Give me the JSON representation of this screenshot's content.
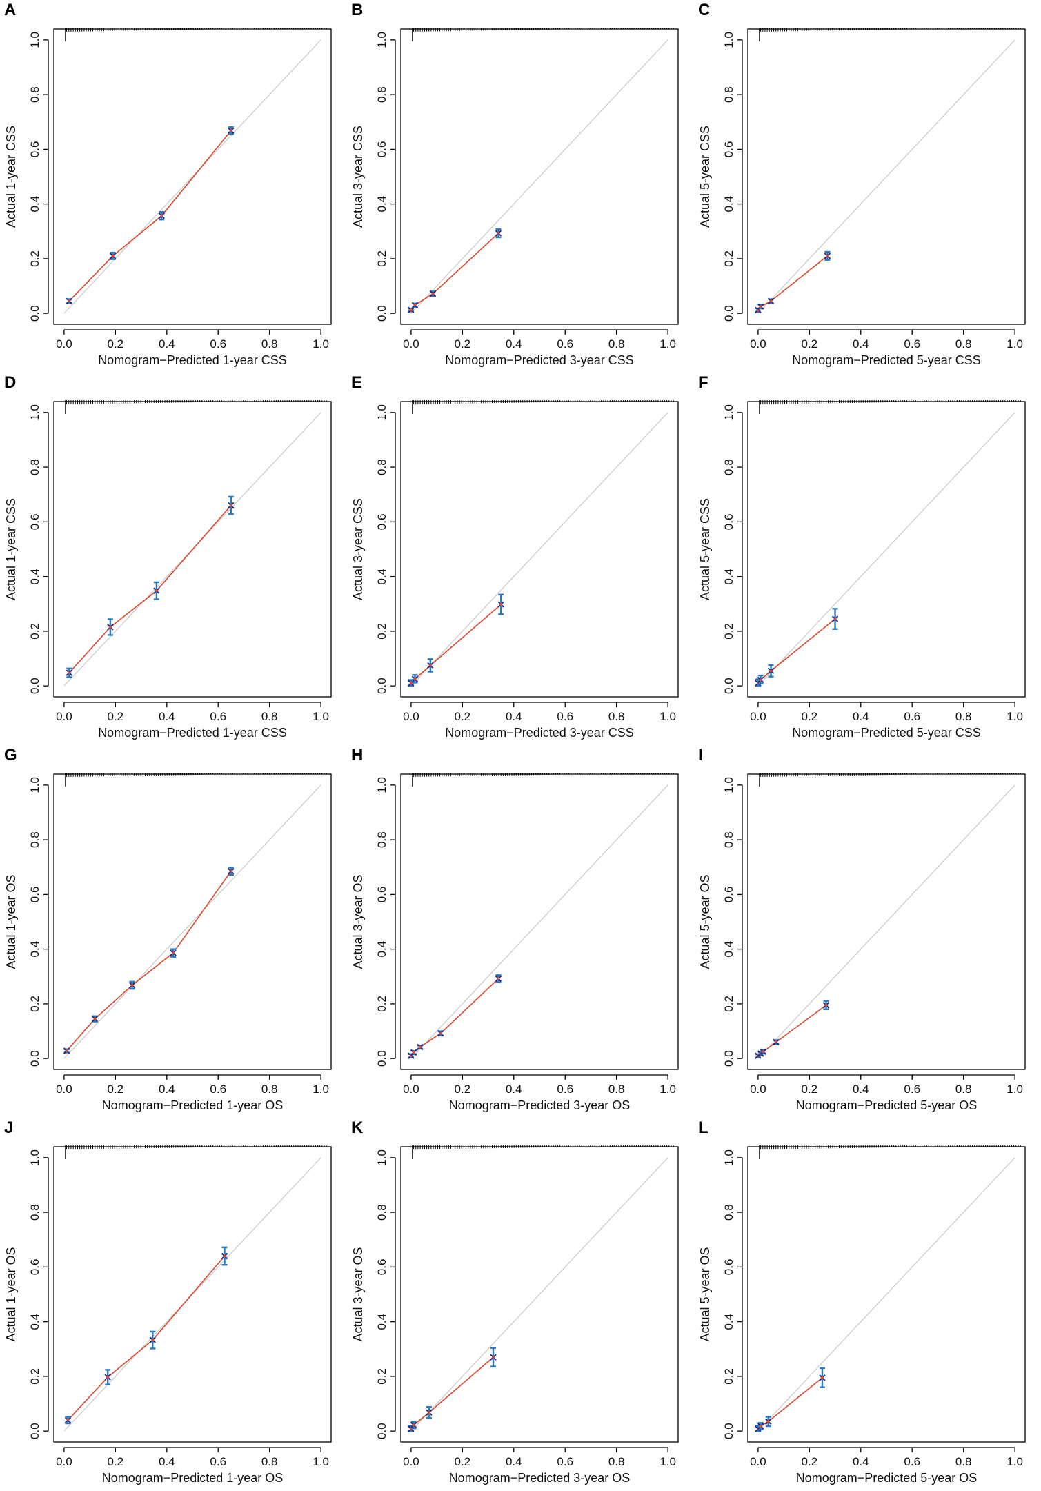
{
  "colors": {
    "calibration_line": "#d9482b",
    "error_bar": "#2a7ac0",
    "point_marker": "#1b2f8c",
    "ideal_line": "#c8c8c8"
  },
  "chart_data": [
    {
      "panel": "A",
      "type": "line",
      "xlabel": "Nomogram−Predicted 1-year CSS",
      "ylabel": "Actual 1-year CSS",
      "xlim": [
        0,
        1
      ],
      "ylim": [
        0,
        1
      ],
      "grid": false,
      "ticks": [
        "0.0",
        "0.2",
        "0.4",
        "0.6",
        "0.8",
        "1.0"
      ],
      "points": [
        {
          "x": 0.02,
          "y": 0.045,
          "lo": 0.038,
          "hi": 0.052
        },
        {
          "x": 0.19,
          "y": 0.21,
          "lo": 0.198,
          "hi": 0.222
        },
        {
          "x": 0.38,
          "y": 0.357,
          "lo": 0.343,
          "hi": 0.371
        },
        {
          "x": 0.65,
          "y": 0.668,
          "lo": 0.655,
          "hi": 0.681
        }
      ]
    },
    {
      "panel": "B",
      "type": "line",
      "xlabel": "Nomogram−Predicted 3-year CSS",
      "ylabel": "Actual 3-year CSS",
      "xlim": [
        0,
        1
      ],
      "ylim": [
        0,
        1
      ],
      "grid": false,
      "ticks": [
        "0.0",
        "0.2",
        "0.4",
        "0.6",
        "0.8",
        "1.0"
      ],
      "points": [
        {
          "x": 0.0,
          "y": 0.012,
          "lo": 0.007,
          "hi": 0.017
        },
        {
          "x": 0.015,
          "y": 0.03,
          "lo": 0.024,
          "hi": 0.036
        },
        {
          "x": 0.085,
          "y": 0.072,
          "lo": 0.064,
          "hi": 0.08
        },
        {
          "x": 0.34,
          "y": 0.293,
          "lo": 0.278,
          "hi": 0.308
        }
      ]
    },
    {
      "panel": "C",
      "type": "line",
      "xlabel": "Nomogram−Predicted 5-year CSS",
      "ylabel": "Actual 5-year CSS",
      "xlim": [
        0,
        1
      ],
      "ylim": [
        0,
        1
      ],
      "grid": false,
      "ticks": [
        "0.0",
        "0.2",
        "0.4",
        "0.6",
        "0.8",
        "1.0"
      ],
      "points": [
        {
          "x": 0.0,
          "y": 0.012,
          "lo": 0.006,
          "hi": 0.018
        },
        {
          "x": 0.01,
          "y": 0.025,
          "lo": 0.018,
          "hi": 0.032
        },
        {
          "x": 0.05,
          "y": 0.045,
          "lo": 0.038,
          "hi": 0.052
        },
        {
          "x": 0.27,
          "y": 0.21,
          "lo": 0.195,
          "hi": 0.225
        }
      ]
    },
    {
      "panel": "D",
      "type": "line",
      "xlabel": "Nomogram−Predicted 1-year CSS",
      "ylabel": "Actual 1-year CSS",
      "xlim": [
        0,
        1
      ],
      "ylim": [
        0,
        1
      ],
      "grid": false,
      "ticks": [
        "0.0",
        "0.2",
        "0.4",
        "0.6",
        "0.8",
        "1.0"
      ],
      "points": [
        {
          "x": 0.02,
          "y": 0.048,
          "lo": 0.032,
          "hi": 0.064
        },
        {
          "x": 0.18,
          "y": 0.215,
          "lo": 0.186,
          "hi": 0.244
        },
        {
          "x": 0.36,
          "y": 0.348,
          "lo": 0.317,
          "hi": 0.379
        },
        {
          "x": 0.65,
          "y": 0.66,
          "lo": 0.628,
          "hi": 0.692
        }
      ]
    },
    {
      "panel": "E",
      "type": "line",
      "xlabel": "Nomogram−Predicted 3-year CSS",
      "ylabel": "Actual 3-year CSS",
      "xlim": [
        0,
        1
      ],
      "ylim": [
        0,
        1
      ],
      "grid": false,
      "ticks": [
        "0.0",
        "0.2",
        "0.4",
        "0.6",
        "0.8",
        "1.0"
      ],
      "points": [
        {
          "x": 0.0,
          "y": 0.01,
          "lo": 0.0,
          "hi": 0.022
        },
        {
          "x": 0.015,
          "y": 0.025,
          "lo": 0.012,
          "hi": 0.04
        },
        {
          "x": 0.075,
          "y": 0.075,
          "lo": 0.052,
          "hi": 0.098
        },
        {
          "x": 0.35,
          "y": 0.298,
          "lo": 0.262,
          "hi": 0.334
        }
      ]
    },
    {
      "panel": "F",
      "type": "line",
      "xlabel": "Nomogram−Predicted 5-year CSS",
      "ylabel": "Actual 5-year CSS",
      "xlim": [
        0,
        1
      ],
      "ylim": [
        0,
        1
      ],
      "grid": false,
      "ticks": [
        "0.0",
        "0.2",
        "0.4",
        "0.6",
        "0.8",
        "1.0"
      ],
      "points": [
        {
          "x": 0.0,
          "y": 0.01,
          "lo": 0.0,
          "hi": 0.024
        },
        {
          "x": 0.01,
          "y": 0.022,
          "lo": 0.008,
          "hi": 0.038
        },
        {
          "x": 0.05,
          "y": 0.055,
          "lo": 0.034,
          "hi": 0.076
        },
        {
          "x": 0.3,
          "y": 0.245,
          "lo": 0.208,
          "hi": 0.282
        }
      ]
    },
    {
      "panel": "G",
      "type": "line",
      "xlabel": "Nomogram−Predicted 1-year OS",
      "ylabel": "Actual 1-year OS",
      "xlim": [
        0,
        1
      ],
      "ylim": [
        0,
        1
      ],
      "grid": false,
      "ticks": [
        "0.0",
        "0.2",
        "0.4",
        "0.6",
        "0.8",
        "1.0"
      ],
      "points": [
        {
          "x": 0.01,
          "y": 0.028,
          "lo": 0.022,
          "hi": 0.034
        },
        {
          "x": 0.12,
          "y": 0.145,
          "lo": 0.135,
          "hi": 0.155
        },
        {
          "x": 0.265,
          "y": 0.268,
          "lo": 0.255,
          "hi": 0.281
        },
        {
          "x": 0.425,
          "y": 0.386,
          "lo": 0.372,
          "hi": 0.4
        },
        {
          "x": 0.65,
          "y": 0.685,
          "lo": 0.671,
          "hi": 0.699
        }
      ]
    },
    {
      "panel": "H",
      "type": "line",
      "xlabel": "Nomogram−Predicted 3-year OS",
      "ylabel": "Actual 3-year OS",
      "xlim": [
        0,
        1
      ],
      "ylim": [
        0,
        1
      ],
      "grid": false,
      "ticks": [
        "0.0",
        "0.2",
        "0.4",
        "0.6",
        "0.8",
        "1.0"
      ],
      "points": [
        {
          "x": 0.0,
          "y": 0.01,
          "lo": 0.004,
          "hi": 0.016
        },
        {
          "x": 0.01,
          "y": 0.022,
          "lo": 0.016,
          "hi": 0.028
        },
        {
          "x": 0.035,
          "y": 0.042,
          "lo": 0.036,
          "hi": 0.048
        },
        {
          "x": 0.115,
          "y": 0.092,
          "lo": 0.084,
          "hi": 0.1
        },
        {
          "x": 0.34,
          "y": 0.292,
          "lo": 0.279,
          "hi": 0.305
        }
      ]
    },
    {
      "panel": "I",
      "type": "line",
      "xlabel": "Nomogram−Predicted 5-year OS",
      "ylabel": "Actual 5-year OS",
      "xlim": [
        0,
        1
      ],
      "ylim": [
        0,
        1
      ],
      "grid": false,
      "ticks": [
        "0.0",
        "0.2",
        "0.4",
        "0.6",
        "0.8",
        "1.0"
      ],
      "points": [
        {
          "x": 0.0,
          "y": 0.01,
          "lo": 0.004,
          "hi": 0.016
        },
        {
          "x": 0.01,
          "y": 0.018,
          "lo": 0.012,
          "hi": 0.024
        },
        {
          "x": 0.02,
          "y": 0.025,
          "lo": 0.019,
          "hi": 0.031
        },
        {
          "x": 0.07,
          "y": 0.06,
          "lo": 0.053,
          "hi": 0.067
        },
        {
          "x": 0.265,
          "y": 0.195,
          "lo": 0.18,
          "hi": 0.21
        }
      ]
    },
    {
      "panel": "J",
      "type": "line",
      "xlabel": "Nomogram−Predicted 1-year OS",
      "ylabel": "Actual 1-year OS",
      "xlim": [
        0,
        1
      ],
      "ylim": [
        0,
        1
      ],
      "grid": false,
      "ticks": [
        "0.0",
        "0.2",
        "0.4",
        "0.6",
        "0.8",
        "1.0"
      ],
      "points": [
        {
          "x": 0.015,
          "y": 0.04,
          "lo": 0.028,
          "hi": 0.052
        },
        {
          "x": 0.17,
          "y": 0.197,
          "lo": 0.17,
          "hi": 0.224
        },
        {
          "x": 0.345,
          "y": 0.333,
          "lo": 0.302,
          "hi": 0.364
        },
        {
          "x": 0.625,
          "y": 0.64,
          "lo": 0.608,
          "hi": 0.672
        }
      ]
    },
    {
      "panel": "K",
      "type": "line",
      "xlabel": "Nomogram−Predicted 3-year OS",
      "ylabel": "Actual 3-year OS",
      "xlim": [
        0,
        1
      ],
      "ylim": [
        0,
        1
      ],
      "grid": false,
      "ticks": [
        "0.0",
        "0.2",
        "0.4",
        "0.6",
        "0.8",
        "1.0"
      ],
      "points": [
        {
          "x": 0.0,
          "y": 0.008,
          "lo": 0.0,
          "hi": 0.018
        },
        {
          "x": 0.01,
          "y": 0.022,
          "lo": 0.01,
          "hi": 0.034
        },
        {
          "x": 0.07,
          "y": 0.068,
          "lo": 0.048,
          "hi": 0.088
        },
        {
          "x": 0.32,
          "y": 0.27,
          "lo": 0.236,
          "hi": 0.304
        }
      ]
    },
    {
      "panel": "L",
      "type": "line",
      "xlabel": "Nomogram−Predicted 5-year OS",
      "ylabel": "Actual 5-year OS",
      "xlim": [
        0,
        1
      ],
      "ylim": [
        0,
        1
      ],
      "grid": false,
      "ticks": [
        "0.0",
        "0.2",
        "0.4",
        "0.6",
        "0.8",
        "1.0"
      ],
      "points": [
        {
          "x": 0.0,
          "y": 0.008,
          "lo": 0.0,
          "hi": 0.02
        },
        {
          "x": 0.01,
          "y": 0.018,
          "lo": 0.006,
          "hi": 0.03
        },
        {
          "x": 0.04,
          "y": 0.035,
          "lo": 0.018,
          "hi": 0.052
        },
        {
          "x": 0.25,
          "y": 0.195,
          "lo": 0.16,
          "hi": 0.23
        }
      ]
    }
  ]
}
